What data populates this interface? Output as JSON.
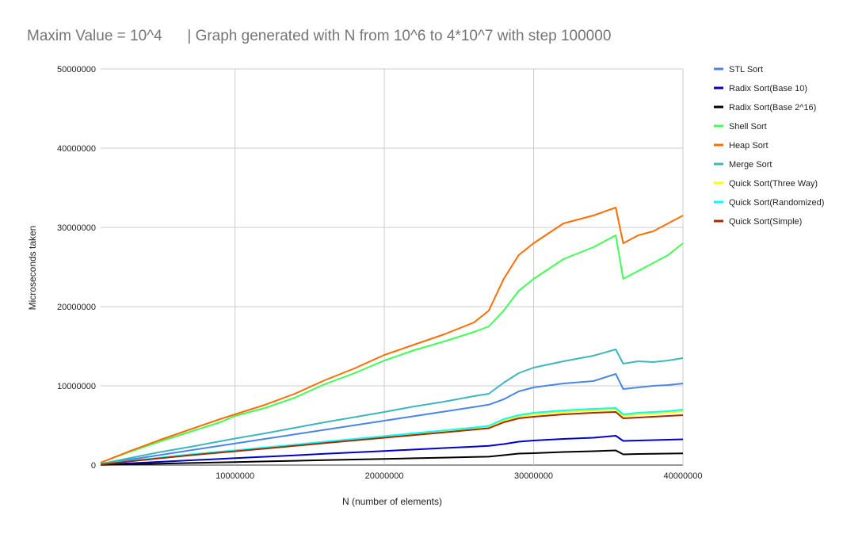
{
  "chart_data": {
    "type": "line",
    "title": "Maxim Value = 10^4      | Graph generated with N from 10^6 to 4*10^7 with step 100000",
    "xlabel": "N (number of elements)",
    "ylabel": "Microseconds taken",
    "xlim": [
      1000000,
      40000000
    ],
    "ylim": [
      0,
      50000000
    ],
    "x_ticks": [
      10000000,
      20000000,
      30000000,
      40000000
    ],
    "x_tick_labels": [
      "10000000",
      "20000000",
      "30000000",
      "40000000"
    ],
    "y_ticks": [
      0,
      10000000,
      20000000,
      30000000,
      40000000,
      50000000
    ],
    "y_tick_labels": [
      "0",
      "10000000",
      "20000000",
      "30000000",
      "40000000",
      "50000000"
    ],
    "grid": true,
    "legend_position": "right",
    "x": [
      1000000,
      3000000,
      5000000,
      7000000,
      9000000,
      10000000,
      12000000,
      14000000,
      16000000,
      18000000,
      20000000,
      22000000,
      24000000,
      26000000,
      27000000,
      28000000,
      29000000,
      30000000,
      32000000,
      34000000,
      35500000,
      36000000,
      37000000,
      38000000,
      39000000,
      40000000
    ],
    "series": [
      {
        "name": "STL Sort",
        "color": "#4a86e8",
        "values": [
          150000,
          700000,
          1280000,
          1860000,
          2440000,
          2730000,
          3300000,
          3880000,
          4450000,
          5030000,
          5600000,
          6180000,
          6750000,
          7330000,
          7620000,
          8300000,
          9300000,
          9800000,
          10300000,
          10600000,
          11500000,
          9600000,
          9800000,
          10000000,
          10100000,
          10300000
        ]
      },
      {
        "name": "Radix Sort(Base 10)",
        "color": "#0000cc",
        "values": [
          50000,
          230000,
          410000,
          600000,
          780000,
          870000,
          1050000,
          1230000,
          1420000,
          1600000,
          1780000,
          1960000,
          2150000,
          2330000,
          2420000,
          2650000,
          2950000,
          3100000,
          3300000,
          3450000,
          3700000,
          3050000,
          3100000,
          3150000,
          3200000,
          3250000
        ]
      },
      {
        "name": "Radix Sort(Base 2^16)",
        "color": "#000000",
        "values": [
          20000,
          100000,
          180000,
          260000,
          340000,
          380000,
          460000,
          540000,
          620000,
          700000,
          780000,
          860000,
          940000,
          1020000,
          1060000,
          1250000,
          1450000,
          1500000,
          1650000,
          1750000,
          1850000,
          1350000,
          1400000,
          1420000,
          1450000,
          1480000
        ]
      },
      {
        "name": "Shell Sort",
        "color": "#40ff55",
        "values": [
          300000,
          1700000,
          3000000,
          4200000,
          5400000,
          6200000,
          7200000,
          8500000,
          10200000,
          11600000,
          13200000,
          14500000,
          15600000,
          16800000,
          17500000,
          19500000,
          22000000,
          23500000,
          26000000,
          27500000,
          29000000,
          23500000,
          24500000,
          25500000,
          26500000,
          28000000
        ]
      },
      {
        "name": "Heap Sort",
        "color": "#ff6d01",
        "values": [
          300000,
          1800000,
          3200000,
          4500000,
          5800000,
          6400000,
          7600000,
          9000000,
          10700000,
          12200000,
          13900000,
          15200000,
          16500000,
          18000000,
          19500000,
          23500000,
          26500000,
          28000000,
          30500000,
          31500000,
          32500000,
          28000000,
          29000000,
          29500000,
          30500000,
          31500000
        ]
      },
      {
        "name": "Merge Sort",
        "color": "#3fb5be",
        "values": [
          150000,
          900000,
          1650000,
          2300000,
          3000000,
          3350000,
          4000000,
          4700000,
          5400000,
          6050000,
          6700000,
          7400000,
          8000000,
          8700000,
          9000000,
          10400000,
          11600000,
          12300000,
          13100000,
          13800000,
          14600000,
          12800000,
          13100000,
          13000000,
          13200000,
          13500000
        ]
      },
      {
        "name": "Quick Sort(Three Way)",
        "color": "#ffff00",
        "values": [
          90000,
          500000,
          900000,
          1300000,
          1650000,
          1800000,
          2150000,
          2500000,
          2850000,
          3200000,
          3550000,
          3900000,
          4250000,
          4600000,
          4800000,
          5600000,
          6100000,
          6400000,
          6700000,
          6900000,
          7000000,
          6200000,
          6400000,
          6500000,
          6600000,
          6800000
        ]
      },
      {
        "name": "Quick Sort(Randomized)",
        "color": "#00ffff",
        "values": [
          100000,
          520000,
          940000,
          1350000,
          1700000,
          1860000,
          2220000,
          2580000,
          2950000,
          3300000,
          3660000,
          4020000,
          4380000,
          4740000,
          4950000,
          5800000,
          6300000,
          6600000,
          6900000,
          7100000,
          7200000,
          6400000,
          6600000,
          6700000,
          6800000,
          7000000
        ]
      },
      {
        "name": "Quick Sort(Simple)",
        "color": "#a52a00",
        "values": [
          80000,
          470000,
          860000,
          1240000,
          1580000,
          1740000,
          2080000,
          2420000,
          2770000,
          3110000,
          3450000,
          3790000,
          4130000,
          4480000,
          4650000,
          5400000,
          5900000,
          6100000,
          6400000,
          6600000,
          6700000,
          5900000,
          6000000,
          6100000,
          6200000,
          6300000
        ]
      }
    ]
  }
}
